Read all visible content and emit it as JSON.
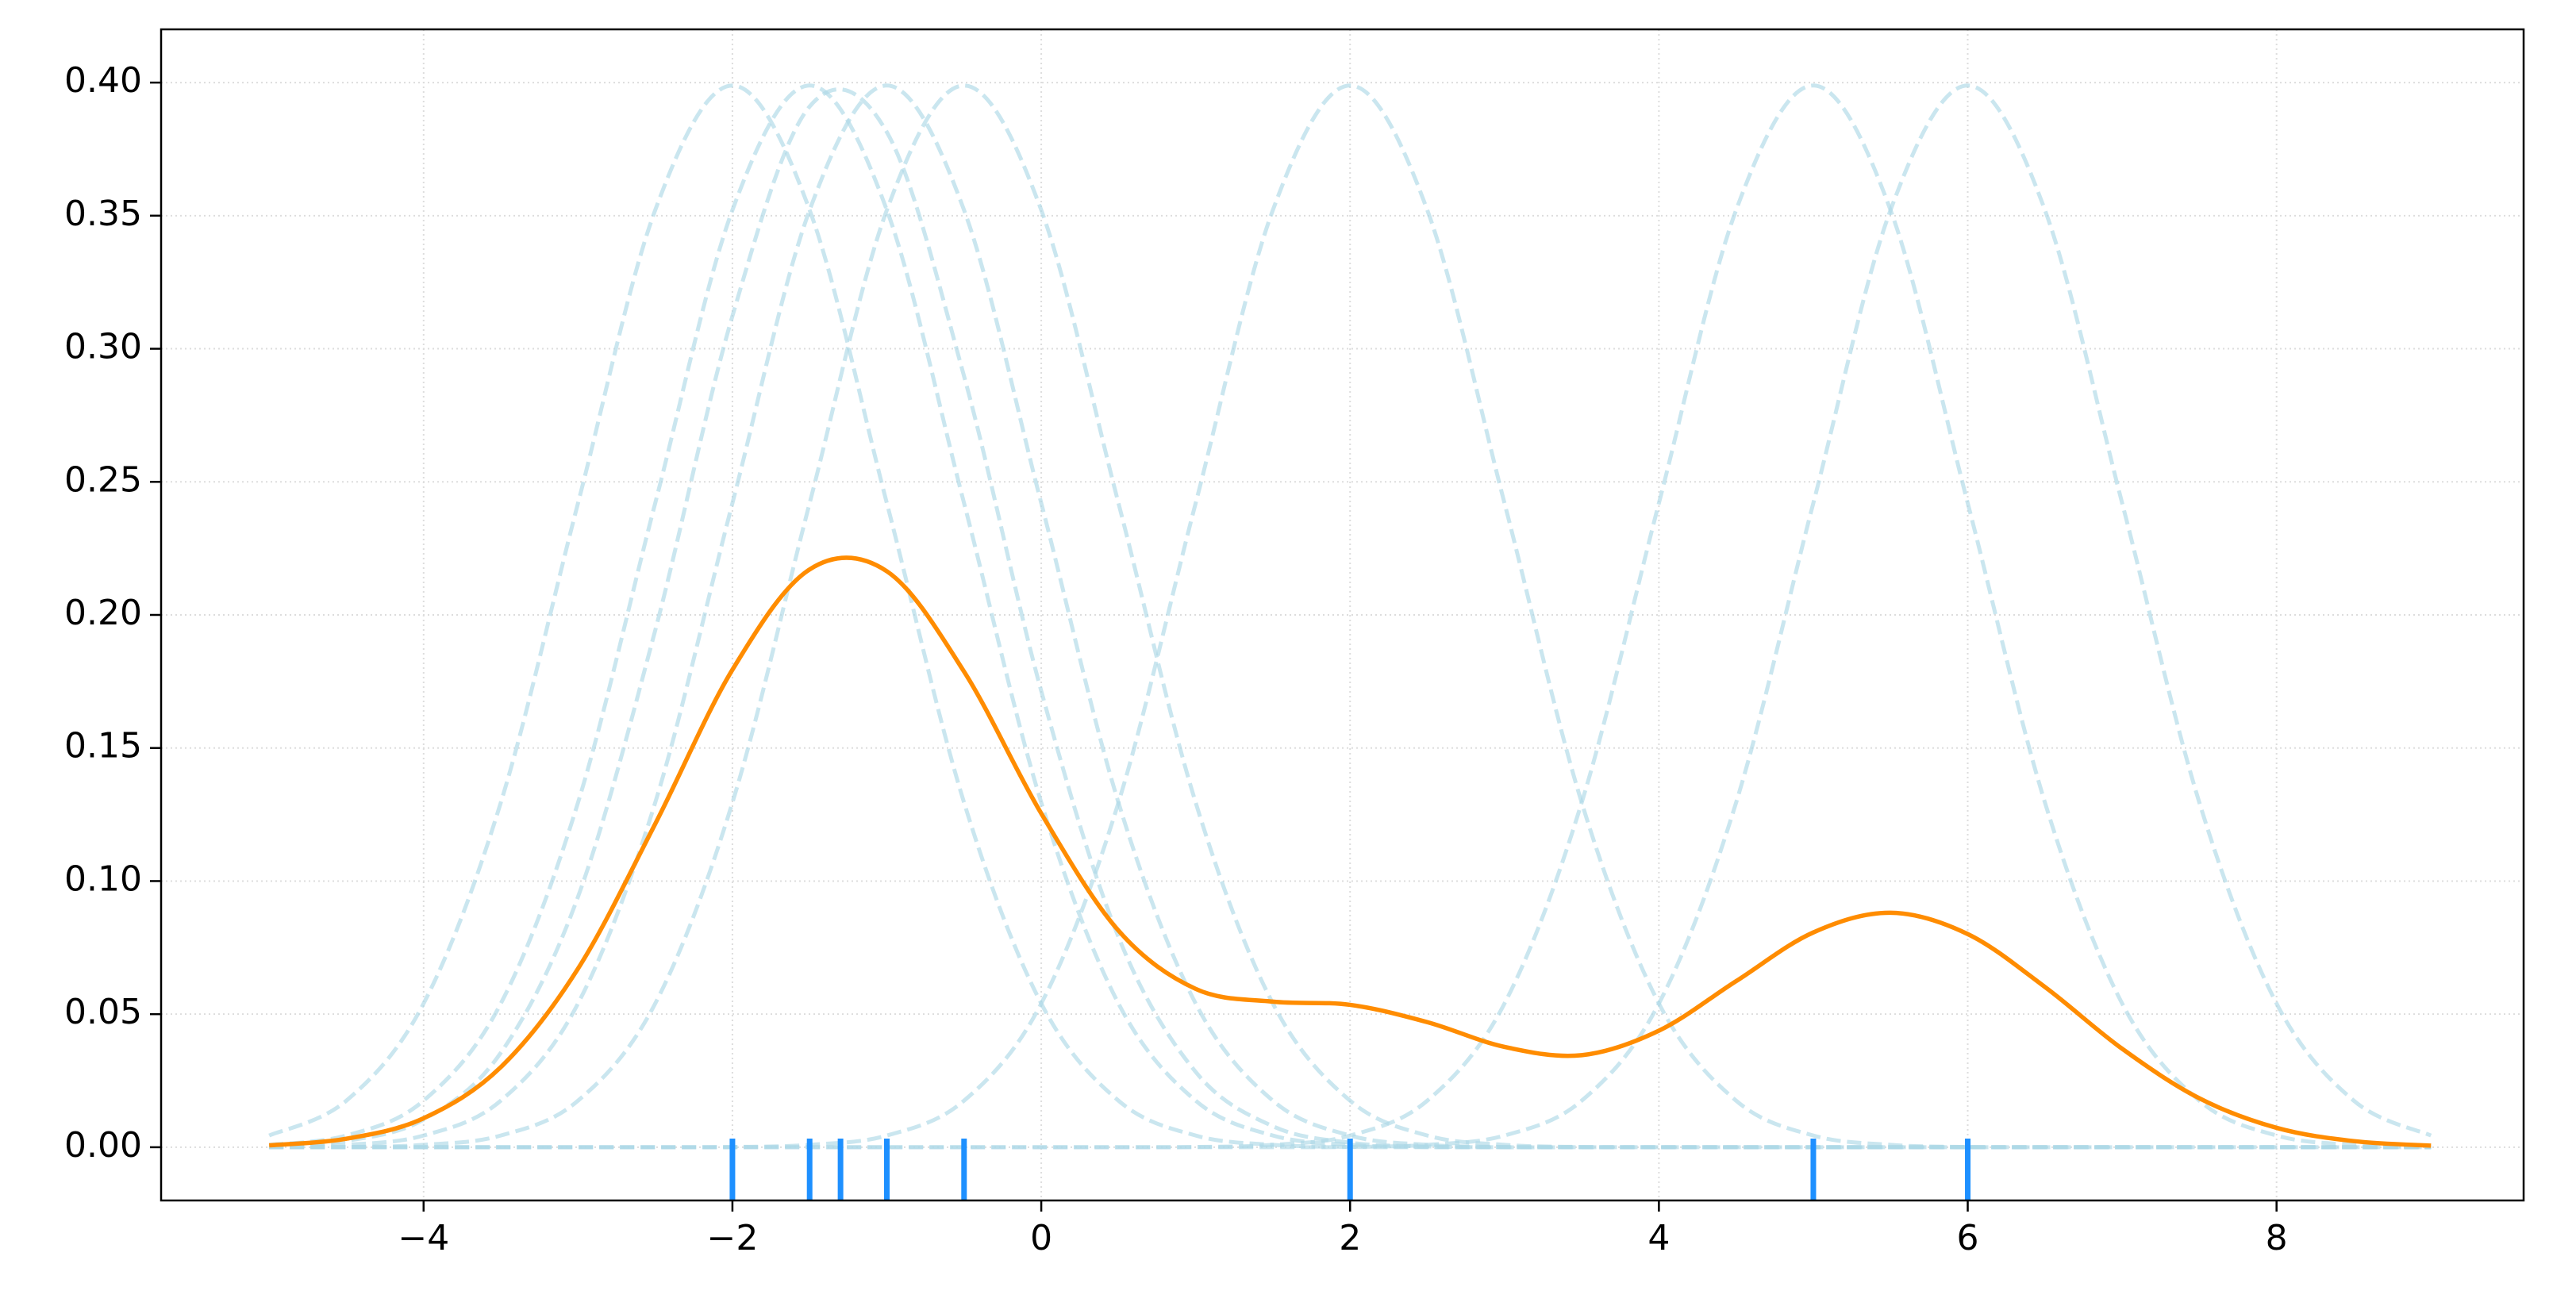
{
  "chart_data": {
    "type": "line",
    "xlim": [
      -5.7,
      9.6
    ],
    "ylim": [
      -0.02,
      0.42
    ],
    "xticks": [
      {
        "value": -4,
        "label": "−4"
      },
      {
        "value": -2,
        "label": "−2"
      },
      0,
      2,
      4,
      6,
      8
    ],
    "yticks": [
      {
        "value": 0,
        "label": "0.00"
      },
      {
        "value": 0.05,
        "label": "0.05"
      },
      {
        "value": 0.1,
        "label": "0.10"
      },
      {
        "value": 0.15,
        "label": "0.15"
      },
      {
        "value": 0.2,
        "label": "0.20"
      },
      {
        "value": 0.25,
        "label": "0.25"
      },
      {
        "value": 0.3,
        "label": "0.30"
      },
      {
        "value": 0.35,
        "label": "0.35"
      },
      {
        "value": 0.4,
        "label": "0.40"
      }
    ],
    "grid": true,
    "x": [
      -5,
      -4.5,
      -4,
      -3.5,
      -3,
      -2.5,
      -2,
      -1.5,
      -1,
      -0.5,
      0,
      0.5,
      1,
      1.5,
      2,
      2.5,
      3,
      3.5,
      4,
      4.5,
      5,
      5.5,
      6,
      6.5,
      7,
      7.5,
      8,
      8.5,
      9
    ],
    "series": [
      {
        "color": "#add8e6",
        "dashed": true,
        "values": [
          0.0044,
          0.0175,
          0.054,
          0.1295,
          0.242,
          0.3521,
          0.3989,
          0.3521,
          0.242,
          0.1295,
          0.054,
          0.0175,
          0.0044,
          0.0009,
          0.0001,
          0,
          0,
          0,
          0,
          0,
          0,
          0,
          0,
          0,
          0,
          0,
          0,
          0,
          0
        ]
      },
      {
        "color": "#add8e6",
        "dashed": true,
        "values": [
          0.0009,
          0.0044,
          0.0175,
          0.054,
          0.1295,
          0.242,
          0.3521,
          0.3989,
          0.3521,
          0.242,
          0.1295,
          0.054,
          0.0175,
          0.0044,
          0.0009,
          0.0001,
          0,
          0,
          0,
          0,
          0,
          0,
          0,
          0,
          0,
          0,
          0,
          0,
          0
        ]
      },
      {
        "color": "#add8e6",
        "dashed": true,
        "values": [
          0.0004,
          0.0024,
          0.0104,
          0.0355,
          0.0941,
          0.1942,
          0.3123,
          0.391,
          0.3814,
          0.2897,
          0.1714,
          0.079,
          0.0283,
          0.0079,
          0.0017,
          0.0003,
          0,
          0,
          0,
          0,
          0,
          0,
          0,
          0,
          0,
          0,
          0,
          0,
          0
        ]
      },
      {
        "color": "#add8e6",
        "dashed": true,
        "values": [
          0.0001,
          0.0009,
          0.0044,
          0.0175,
          0.054,
          0.1295,
          0.242,
          0.3521,
          0.3989,
          0.3521,
          0.242,
          0.1295,
          0.054,
          0.0175,
          0.0044,
          0.0009,
          0.0001,
          0,
          0,
          0,
          0,
          0,
          0,
          0,
          0,
          0,
          0,
          0,
          0
        ]
      },
      {
        "color": "#add8e6",
        "dashed": true,
        "values": [
          0,
          0.0001,
          0.0009,
          0.0044,
          0.0175,
          0.054,
          0.1295,
          0.242,
          0.3521,
          0.3989,
          0.3521,
          0.242,
          0.1295,
          0.054,
          0.0175,
          0.0044,
          0.0009,
          0.0001,
          0,
          0,
          0,
          0,
          0,
          0,
          0,
          0,
          0,
          0,
          0
        ]
      },
      {
        "color": "#add8e6",
        "dashed": true,
        "values": [
          0,
          0,
          0,
          0,
          0,
          0,
          0.0001,
          0.0009,
          0.0044,
          0.0175,
          0.054,
          0.1295,
          0.242,
          0.3521,
          0.3989,
          0.3521,
          0.242,
          0.1295,
          0.054,
          0.0175,
          0.0044,
          0.0009,
          0.0001,
          0,
          0,
          0,
          0,
          0,
          0
        ]
      },
      {
        "color": "#add8e6",
        "dashed": true,
        "values": [
          0,
          0,
          0,
          0,
          0,
          0,
          0,
          0,
          0,
          0,
          0,
          0,
          0.0001,
          0.0009,
          0.0044,
          0.0175,
          0.054,
          0.1295,
          0.242,
          0.3521,
          0.3989,
          0.3521,
          0.242,
          0.1295,
          0.054,
          0.0175,
          0.0044,
          0.0009,
          0.0001
        ]
      },
      {
        "color": "#add8e6",
        "dashed": true,
        "values": [
          0,
          0,
          0,
          0,
          0,
          0,
          0,
          0,
          0,
          0,
          0,
          0,
          0,
          0,
          0.0001,
          0.0009,
          0.0044,
          0.0175,
          0.054,
          0.1295,
          0.242,
          0.3521,
          0.3989,
          0.3521,
          0.242,
          0.1295,
          0.054,
          0.0175,
          0.0044
        ]
      },
      {
        "color": "#ff8c00",
        "dashed": false,
        "values": [
          0.0007,
          0.0032,
          0.0109,
          0.0301,
          0.0671,
          0.1215,
          0.1794,
          0.2171,
          0.2164,
          0.1787,
          0.1254,
          0.0814,
          0.0595,
          0.0547,
          0.0535,
          0.047,
          0.0377,
          0.0346,
          0.0438,
          0.0624,
          0.0807,
          0.0881,
          0.0801,
          0.0602,
          0.037,
          0.0184,
          0.0073,
          0.0023,
          0.0006
        ]
      }
    ],
    "rug": {
      "color": "#1e90ff",
      "values": [
        -2,
        -1.5,
        -1.3,
        -1,
        -0.5,
        2,
        5,
        6
      ]
    }
  }
}
